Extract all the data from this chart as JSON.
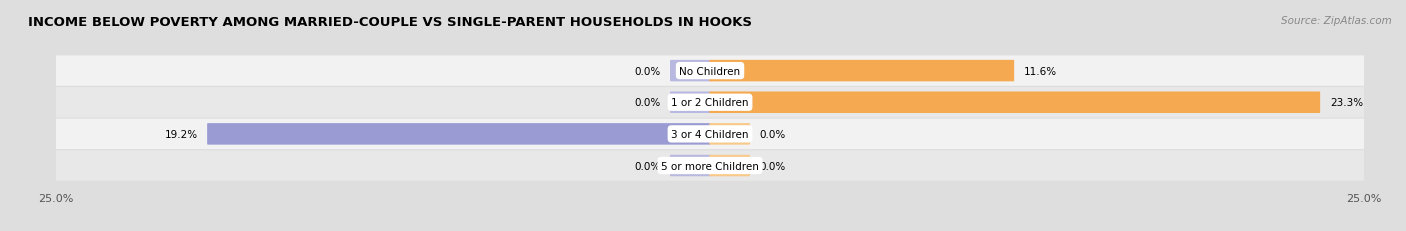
{
  "title": "INCOME BELOW POVERTY AMONG MARRIED-COUPLE VS SINGLE-PARENT HOUSEHOLDS IN HOOKS",
  "source": "Source: ZipAtlas.com",
  "categories": [
    "No Children",
    "1 or 2 Children",
    "3 or 4 Children",
    "5 or more Children"
  ],
  "married_couples": [
    0.0,
    0.0,
    19.2,
    0.0
  ],
  "single_parents": [
    11.6,
    23.3,
    0.0,
    0.0
  ],
  "xlim": [
    -25.0,
    25.0
  ],
  "married_color": "#9b9bd4",
  "single_color": "#f5a951",
  "married_color_light": "#b8b8e0",
  "single_color_light": "#f8c98a",
  "row_colors": [
    "#f2f2f2",
    "#e8e8e8",
    "#f2f2f2",
    "#e8e8e8"
  ],
  "background_color": "#dedede",
  "title_fontsize": 9.5,
  "source_fontsize": 7.5,
  "label_fontsize": 7.5,
  "category_fontsize": 7.5,
  "axis_label_fontsize": 8,
  "bar_height": 0.62,
  "stub_size": 1.5
}
